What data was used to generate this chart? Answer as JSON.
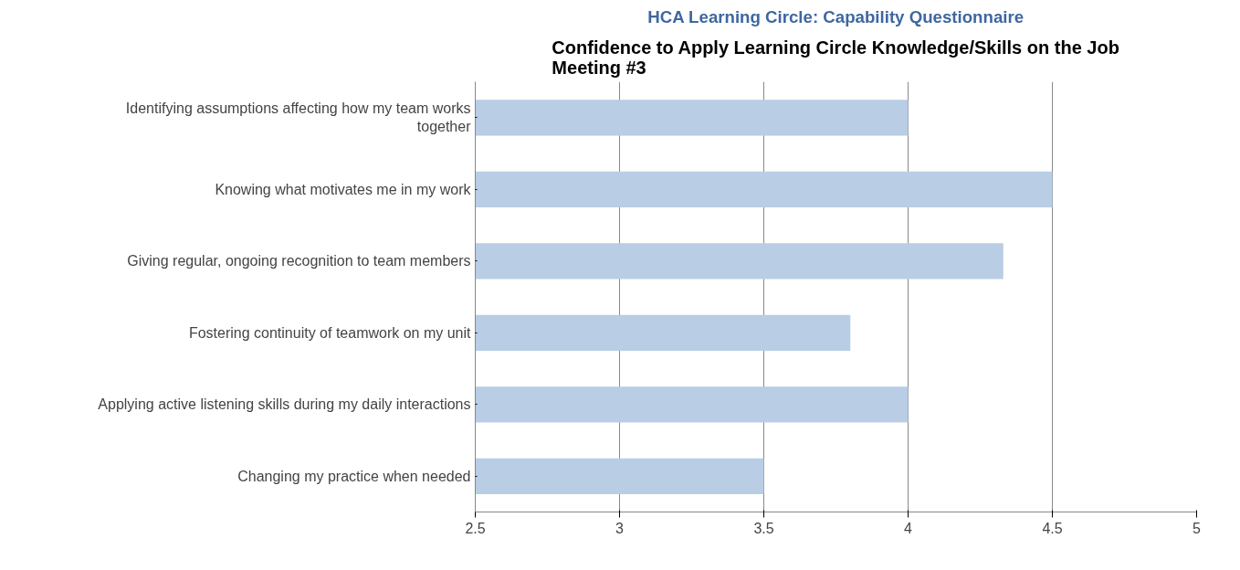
{
  "chart_data": {
    "type": "bar",
    "orientation": "horizontal",
    "title": "HCA Learning Circle: Capability Questionnaire",
    "subtitle": "Confidence to Apply Learning Circle Knowledge/Skills on the Job\nMeeting #3",
    "categories": [
      "Identifying assumptions affecting how my team works\ntogether",
      "Knowing what motivates me in my work",
      "Giving regular, ongoing recognition to team members",
      "Fostering continuity of teamwork on my unit",
      "Applying active listening skills during my daily interactions",
      "Changing my practice when needed"
    ],
    "values": [
      4,
      4.5,
      4.33,
      3.8,
      4,
      3.5
    ],
    "color": "#b9cde5",
    "xlim": [
      2.5,
      5
    ],
    "xticks": [
      2.5,
      3,
      3.5,
      4,
      4.5,
      5
    ],
    "grid": "x"
  }
}
